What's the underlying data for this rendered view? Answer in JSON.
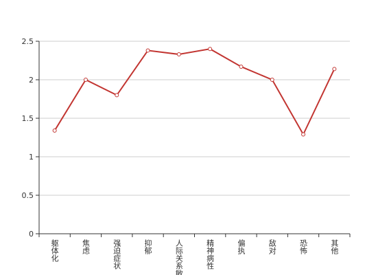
{
  "chart_data": {
    "type": "line",
    "categories": [
      "躯体化",
      "焦虑",
      "强迫症状",
      "抑郁",
      "人际关系敏感",
      "精神病性",
      "偏执",
      "敌对",
      "恐怖",
      "其他"
    ],
    "series": [
      {
        "color": "#c23531",
        "values": [
          1.34,
          2.0,
          1.8,
          2.38,
          2.33,
          2.4,
          2.17,
          2.0,
          1.29,
          2.14
        ]
      }
    ],
    "ylim": [
      0,
      2.5
    ],
    "yticks": [
      0,
      0.5,
      1,
      1.5,
      2,
      2.5
    ],
    "grid": true
  }
}
